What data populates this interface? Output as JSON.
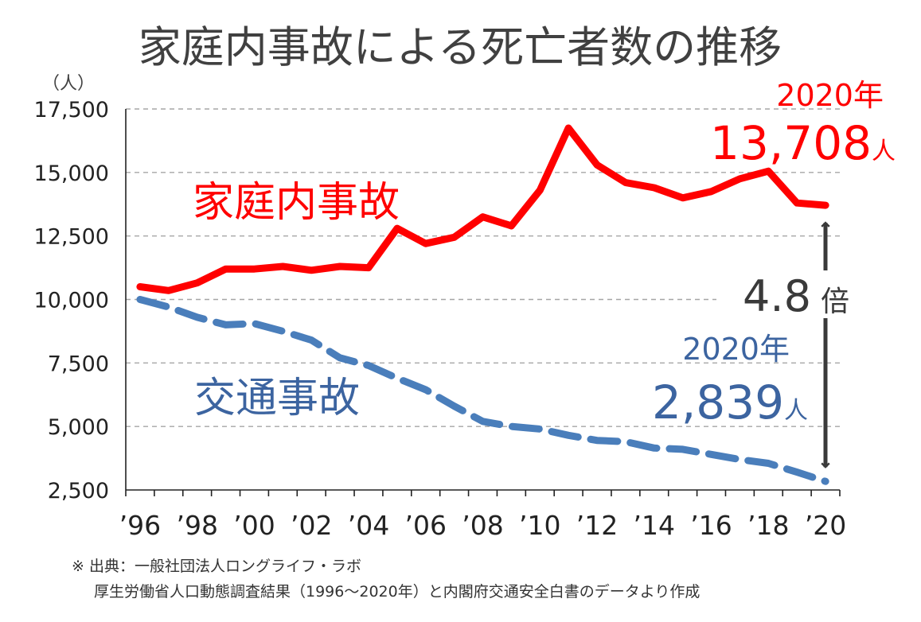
{
  "chart_data": {
    "type": "line",
    "title": "家庭内事故による死亡者数の推移",
    "ylabel": "（人）",
    "xlabel": "",
    "ylim": [
      2500,
      17500
    ],
    "yticks": [
      2500,
      5000,
      7500,
      10000,
      12500,
      15000,
      17500
    ],
    "ytick_labels": [
      "2,500",
      "5,000",
      "7,500",
      "10,000",
      "12,500",
      "15,000",
      "17,500"
    ],
    "x": [
      1996,
      1997,
      1998,
      1999,
      2000,
      2001,
      2002,
      2003,
      2004,
      2005,
      2006,
      2007,
      2008,
      2009,
      2010,
      2011,
      2012,
      2013,
      2014,
      2015,
      2016,
      2017,
      2018,
      2019,
      2020
    ],
    "xtick_values": [
      1996,
      1998,
      2000,
      2002,
      2004,
      2006,
      2008,
      2010,
      2012,
      2014,
      2016,
      2018,
      2020
    ],
    "xtick_labels": [
      "’96",
      "’98",
      "’00",
      "’02",
      "’04",
      "’06",
      "’08",
      "’10",
      "’12",
      "’14",
      "’16",
      "’18",
      "’20"
    ],
    "grid": true,
    "series": [
      {
        "name": "家庭内事故",
        "color": "#ff0000",
        "style": "solid",
        "values": [
          10500,
          10350,
          10650,
          11200,
          11200,
          11300,
          11150,
          11300,
          11250,
          12800,
          12200,
          12450,
          13250,
          12900,
          14300,
          16750,
          15300,
          14600,
          14400,
          14000,
          14250,
          14750,
          15050,
          13800,
          13708
        ]
      },
      {
        "name": "交通事故",
        "color": "#4a7ebb",
        "style": "dashed",
        "values": [
          10000,
          9700,
          9300,
          9000,
          9050,
          8750,
          8400,
          7700,
          7400,
          6900,
          6450,
          5800,
          5200,
          5000,
          4900,
          4650,
          4450,
          4400,
          4150,
          4100,
          3900,
          3700,
          3550,
          3200,
          2839
        ]
      }
    ],
    "annotations": {
      "home": {
        "year": "2020年",
        "value": "13,708",
        "unit": "人"
      },
      "traffic": {
        "year": "2020年",
        "value": "2,839",
        "unit": "人"
      },
      "ratio": {
        "value": "4.8",
        "unit": "倍"
      }
    }
  },
  "footer": {
    "line1": "※ 出典：一般社団法人ロングライフ・ラボ",
    "line2": "厚生労働省人口動態調査結果（1996～2020年）と内閣府交通安全白書のデータより作成"
  }
}
